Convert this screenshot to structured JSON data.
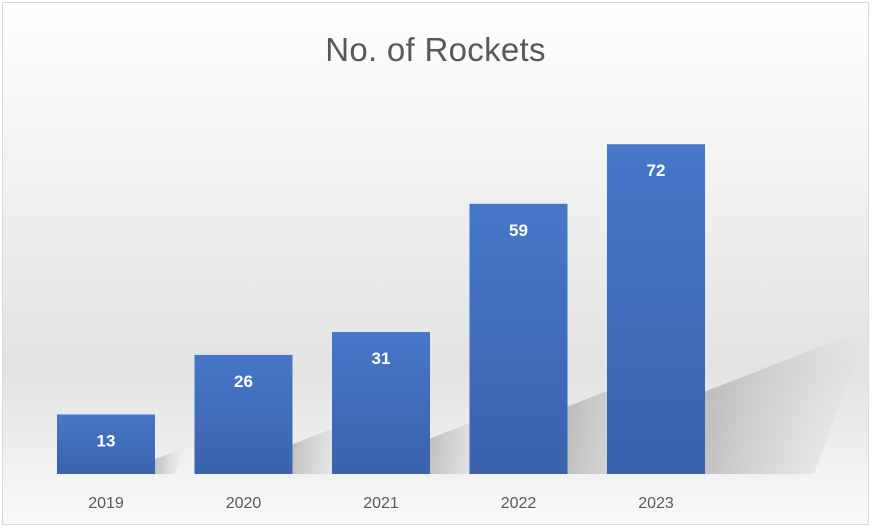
{
  "chart_data": {
    "type": "bar",
    "title": "No. of Rockets",
    "categories": [
      "2019",
      "2020",
      "2021",
      "2022",
      "2023"
    ],
    "values": [
      13,
      26,
      31,
      59,
      72
    ],
    "xlabel": "",
    "ylabel": "",
    "ylim": [
      0,
      80
    ],
    "grid": false,
    "legend": "none",
    "data_labels": "inside-end",
    "bar_color": "#4472c4"
  }
}
